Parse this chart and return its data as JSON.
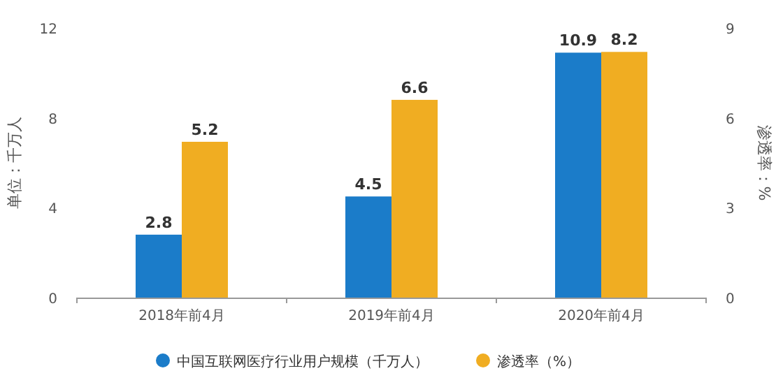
{
  "chart_data": {
    "type": "bar",
    "categories": [
      "2018年前4月",
      "2019年前4月",
      "2020年前4月"
    ],
    "series": [
      {
        "name": "中国互联网医疗行业用户规模（千万人）",
        "color": "#1b7cc9",
        "values": [
          2.8,
          4.5,
          10.9
        ]
      },
      {
        "name": "渗透率（%）",
        "color": "#f0ad22",
        "values": [
          5.2,
          6.6,
          8.2
        ],
        "axis": "y2"
      }
    ],
    "ylabel": "单位：千万人",
    "y2label": "渗透率：%",
    "ylim": [
      0,
      12
    ],
    "yticks": [
      0,
      4,
      8,
      12
    ],
    "y2lim": [
      0,
      9
    ],
    "y2ticks": [
      0,
      3,
      6,
      9
    ],
    "data_labels": true,
    "legend": "bottom"
  }
}
